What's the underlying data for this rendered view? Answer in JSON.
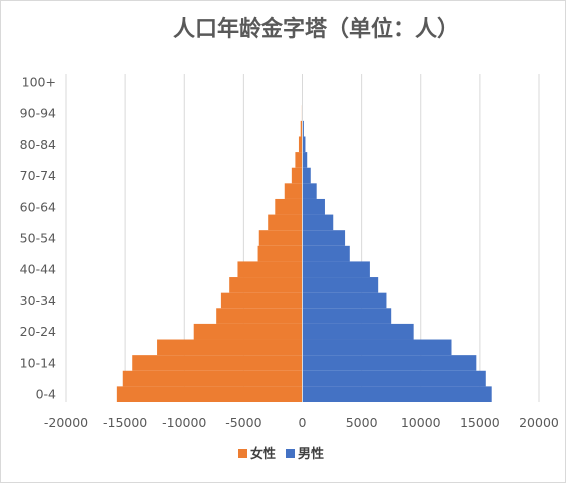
{
  "chart_data": {
    "type": "bar",
    "orientation": "horizontal",
    "title": "人口年龄金字塔（单位：人）",
    "xlabel": "",
    "ylabel": "",
    "xlim": [
      -20000,
      20000
    ],
    "xticks": [
      -20000,
      -15000,
      -10000,
      -5000,
      0,
      5000,
      10000,
      15000,
      20000
    ],
    "xtick_labels": [
      "-20000",
      "-15000",
      "-10000",
      "-5000",
      "0",
      "5000",
      "10000",
      "15000",
      "20000"
    ],
    "grid": "vertical",
    "legend": "bottom",
    "category_labels": [
      "0-4",
      "10-14",
      "20-24",
      "30-34",
      "40-44",
      "50-54",
      "60-64",
      "70-74",
      "80-84",
      "90-94",
      "100+"
    ],
    "categories": [
      "0-4",
      "5-9",
      "10-14",
      "15-19",
      "20-24",
      "25-29",
      "30-34",
      "35-39",
      "40-44",
      "45-49",
      "50-54",
      "55-59",
      "60-64",
      "65-69",
      "70-74",
      "75-79",
      "80-84",
      "85-89",
      "90-94",
      "95-99",
      "100+"
    ],
    "series": [
      {
        "name": "女性",
        "color": "#ED7D31",
        "values": [
          -15700,
          -15200,
          -14400,
          -12300,
          -9200,
          -7300,
          -6900,
          -6200,
          -5500,
          -3800,
          -3700,
          -2900,
          -2300,
          -1500,
          -900,
          -600,
          -300,
          -150,
          -50,
          -20,
          0
        ]
      },
      {
        "name": "男性",
        "color": "#4472C4",
        "values": [
          16000,
          15500,
          14700,
          12600,
          9400,
          7500,
          7100,
          6400,
          5700,
          4000,
          3600,
          2600,
          1900,
          1200,
          700,
          400,
          250,
          120,
          40,
          15,
          0
        ]
      }
    ]
  }
}
